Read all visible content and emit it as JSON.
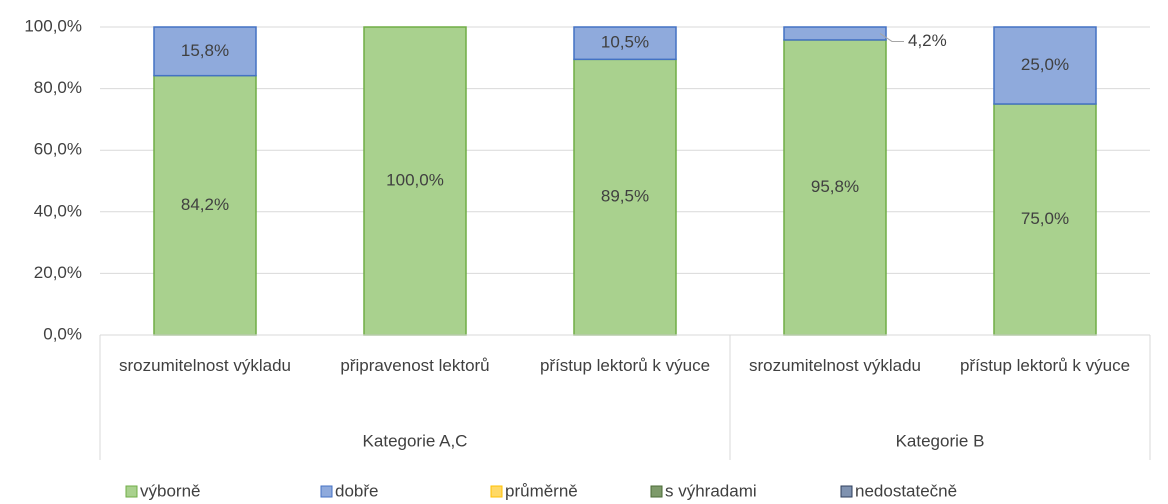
{
  "chart_data": {
    "type": "stacked_bar_100",
    "groups": [
      {
        "name": "Kategorie A,C",
        "categories": [
          "srozumitelnost výkladu",
          "připravenost lektorů",
          "přístup lektorů k výuce"
        ]
      },
      {
        "name": "Kategorie B",
        "categories": [
          "srozumitelnost výkladu",
          "přístup lektorů k výuce"
        ]
      }
    ],
    "series": [
      {
        "name": "výborně",
        "color": "#a9d18e",
        "border": "#70ad47",
        "values": [
          84.2,
          100,
          89.5,
          95.8,
          75.0
        ],
        "value_labels": [
          "84,2%",
          "100,0%",
          "89,5%",
          "95,8%",
          "75,0%"
        ]
      },
      {
        "name": "dobře",
        "color": "#8faadc",
        "border": "#4472c4",
        "values": [
          15.8,
          0,
          10.5,
          4.2,
          25.0
        ],
        "value_labels": [
          "15,8%",
          null,
          "10,5%",
          "4,2%",
          "25,0%"
        ]
      },
      {
        "name": "průměrně",
        "color": "#ffd966",
        "border": "#ffc000",
        "values": [
          0,
          0,
          0,
          0,
          0
        ]
      },
      {
        "name": "s výhradami",
        "color": "#7d9a6a",
        "border": "#4a6b36",
        "values": [
          0,
          0,
          0,
          0,
          0
        ]
      },
      {
        "name": "nedostatečně",
        "color": "#7f92b0",
        "border": "#2f3f5c",
        "values": [
          0,
          0,
          0,
          0,
          0
        ]
      }
    ],
    "ylim": [
      0,
      100
    ],
    "yticks": [
      {
        "value": 0,
        "label": "0,0%"
      },
      {
        "value": 20,
        "label": "20,0%"
      },
      {
        "value": 40,
        "label": "40,0%"
      },
      {
        "value": 60,
        "label": "60,0%"
      },
      {
        "value": 80,
        "label": "80,0%"
      },
      {
        "value": 100,
        "label": "100,0%"
      }
    ],
    "legend": "bottom"
  }
}
